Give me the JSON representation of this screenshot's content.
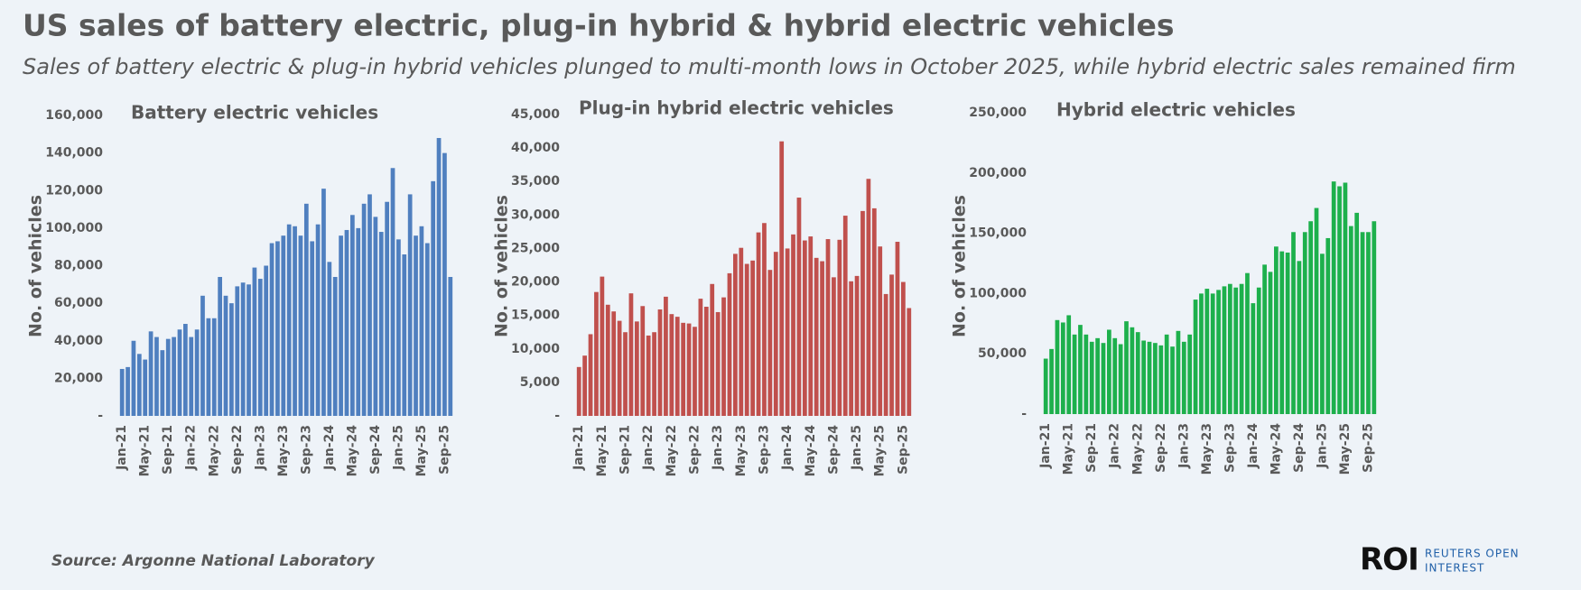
{
  "title": "US sales of battery electric, plug-in hybrid & hybrid electric vehicles",
  "subtitle": "Sales of battery electric & plug-in hybrid vehicles plunged to multi-month lows in October 2025, while hybrid electric sales remained firm",
  "source": "Source:  Argonne National Laboratory",
  "logo": {
    "mark": "ROI",
    "line1": "REUTERS OPEN",
    "line2": "INTEREST"
  },
  "chart_data": [
    {
      "type": "bar",
      "title": "Battery electric vehicles",
      "y_label": "No. of vehicles",
      "color": "#4f7fbf",
      "grid": false,
      "categories": [
        "Jan-21",
        null,
        null,
        null,
        "May-21",
        null,
        null,
        null,
        "Sep-21",
        null,
        null,
        null,
        "Jan-22",
        null,
        null,
        null,
        "May-22",
        null,
        null,
        null,
        "Sep-22",
        null,
        null,
        null,
        "Jan-23",
        null,
        null,
        null,
        "May-23",
        null,
        null,
        null,
        "Sep-23",
        null,
        null,
        null,
        "Jan-24",
        null,
        null,
        null,
        "May-24",
        null,
        null,
        null,
        "Sep-24",
        null,
        null,
        null,
        "Jan-25",
        null,
        null,
        null,
        "May-25",
        null,
        null,
        null,
        "Sep-25",
        null
      ],
      "values": [
        25000,
        26000,
        40000,
        33000,
        30000,
        45000,
        42000,
        35000,
        41000,
        42000,
        46000,
        49000,
        42000,
        46000,
        64000,
        52000,
        52000,
        74000,
        64000,
        60000,
        69000,
        71000,
        70000,
        79000,
        73000,
        80000,
        92000,
        93000,
        96000,
        102000,
        101000,
        96000,
        113000,
        93000,
        102000,
        121000,
        82000,
        74000,
        96000,
        99000,
        107000,
        100000,
        113000,
        118000,
        106000,
        98000,
        114000,
        132000,
        94000,
        86000,
        118000,
        96000,
        101000,
        92000,
        125000,
        148000,
        140000,
        74000
      ],
      "ylim": [
        0,
        160000
      ],
      "yticks": [
        {
          "value": 0,
          "label": "-"
        },
        {
          "value": 20000,
          "label": "20,000"
        },
        {
          "value": 40000,
          "label": "40,000"
        },
        {
          "value": 60000,
          "label": "60,000"
        },
        {
          "value": 80000,
          "label": "80,000"
        },
        {
          "value": 100000,
          "label": "100,000"
        },
        {
          "value": 120000,
          "label": "120,000"
        },
        {
          "value": 140000,
          "label": "140,000"
        },
        {
          "value": 160000,
          "label": "160,000"
        }
      ]
    },
    {
      "type": "bar",
      "title": "Plug-in hybrid electric vehicles",
      "y_label": "No. of vehicles",
      "color": "#c0504d",
      "grid": false,
      "categories": [
        "Jan-21",
        null,
        null,
        null,
        "May-21",
        null,
        null,
        null,
        "Sep-21",
        null,
        null,
        null,
        "Jan-22",
        null,
        null,
        null,
        "May-22",
        null,
        null,
        null,
        "Sep-22",
        null,
        null,
        null,
        "Jan-23",
        null,
        null,
        null,
        "May-23",
        null,
        null,
        null,
        "Sep-23",
        null,
        null,
        null,
        "Jan-24",
        null,
        null,
        null,
        "May-24",
        null,
        null,
        null,
        "Sep-24",
        null,
        null,
        null,
        "Jan-25",
        null,
        null,
        null,
        "May-25",
        null,
        null,
        null,
        "Sep-25",
        null
      ],
      "values": [
        7300,
        9000,
        12200,
        18500,
        20800,
        16600,
        15600,
        14200,
        12500,
        18300,
        14100,
        16400,
        12000,
        12500,
        15900,
        17800,
        15200,
        14800,
        13900,
        13800,
        13300,
        17500,
        16300,
        19700,
        15500,
        17700,
        21300,
        24200,
        25100,
        22700,
        23200,
        27400,
        28800,
        21800,
        24500,
        41000,
        25000,
        27100,
        32600,
        26200,
        26800,
        23600,
        23100,
        26400,
        20700,
        26300,
        29900,
        20100,
        20900,
        30600,
        35400,
        31000,
        25300,
        18200,
        21100,
        26000,
        20000,
        16100
      ],
      "ylim": [
        0,
        45000
      ],
      "yticks": [
        {
          "value": 0,
          "label": "-"
        },
        {
          "value": 5000,
          "label": "5,000"
        },
        {
          "value": 10000,
          "label": "10,000"
        },
        {
          "value": 15000,
          "label": "15,000"
        },
        {
          "value": 20000,
          "label": "20,000"
        },
        {
          "value": 25000,
          "label": "25,000"
        },
        {
          "value": 30000,
          "label": "30,000"
        },
        {
          "value": 35000,
          "label": "35,000"
        },
        {
          "value": 40000,
          "label": "40,000"
        },
        {
          "value": 45000,
          "label": "45,000"
        }
      ]
    },
    {
      "type": "bar",
      "title": "Hybrid electric vehicles",
      "y_label": "No. of vehicles",
      "color": "#1db04c",
      "grid": false,
      "categories": [
        "Jan-21",
        null,
        null,
        null,
        "May-21",
        null,
        null,
        null,
        "Sep-21",
        null,
        null,
        null,
        "Jan-22",
        null,
        null,
        null,
        "May-22",
        null,
        null,
        null,
        "Sep-22",
        null,
        null,
        null,
        "Jan-23",
        null,
        null,
        null,
        "May-23",
        null,
        null,
        null,
        "Sep-23",
        null,
        null,
        null,
        "Jan-24",
        null,
        null,
        null,
        "May-24",
        null,
        null,
        null,
        "Sep-24",
        null,
        null,
        null,
        "Jan-25",
        null,
        null,
        null,
        "May-25",
        null,
        null,
        null,
        "Sep-25",
        null
      ],
      "values": [
        46000,
        54000,
        78000,
        76000,
        82000,
        66000,
        74000,
        66000,
        60000,
        63000,
        59000,
        70000,
        63000,
        58000,
        77000,
        72000,
        68000,
        61000,
        60000,
        59000,
        57000,
        66000,
        56000,
        69000,
        60000,
        66000,
        95000,
        100000,
        104000,
        100000,
        103000,
        106000,
        108000,
        105000,
        108000,
        117000,
        92000,
        105000,
        124000,
        118000,
        139000,
        135000,
        134000,
        151000,
        127000,
        151000,
        160000,
        171000,
        133000,
        146000,
        193000,
        189000,
        192000,
        156000,
        167000,
        151000,
        151000,
        160000
      ],
      "ylim": [
        0,
        250000
      ],
      "yticks": [
        {
          "value": 0,
          "label": "-"
        },
        {
          "value": 50000,
          "label": "50,000"
        },
        {
          "value": 100000,
          "label": "100,000"
        },
        {
          "value": 150000,
          "label": "150,000"
        },
        {
          "value": 200000,
          "label": "200,000"
        },
        {
          "value": 250000,
          "label": "250,000"
        }
      ]
    }
  ]
}
